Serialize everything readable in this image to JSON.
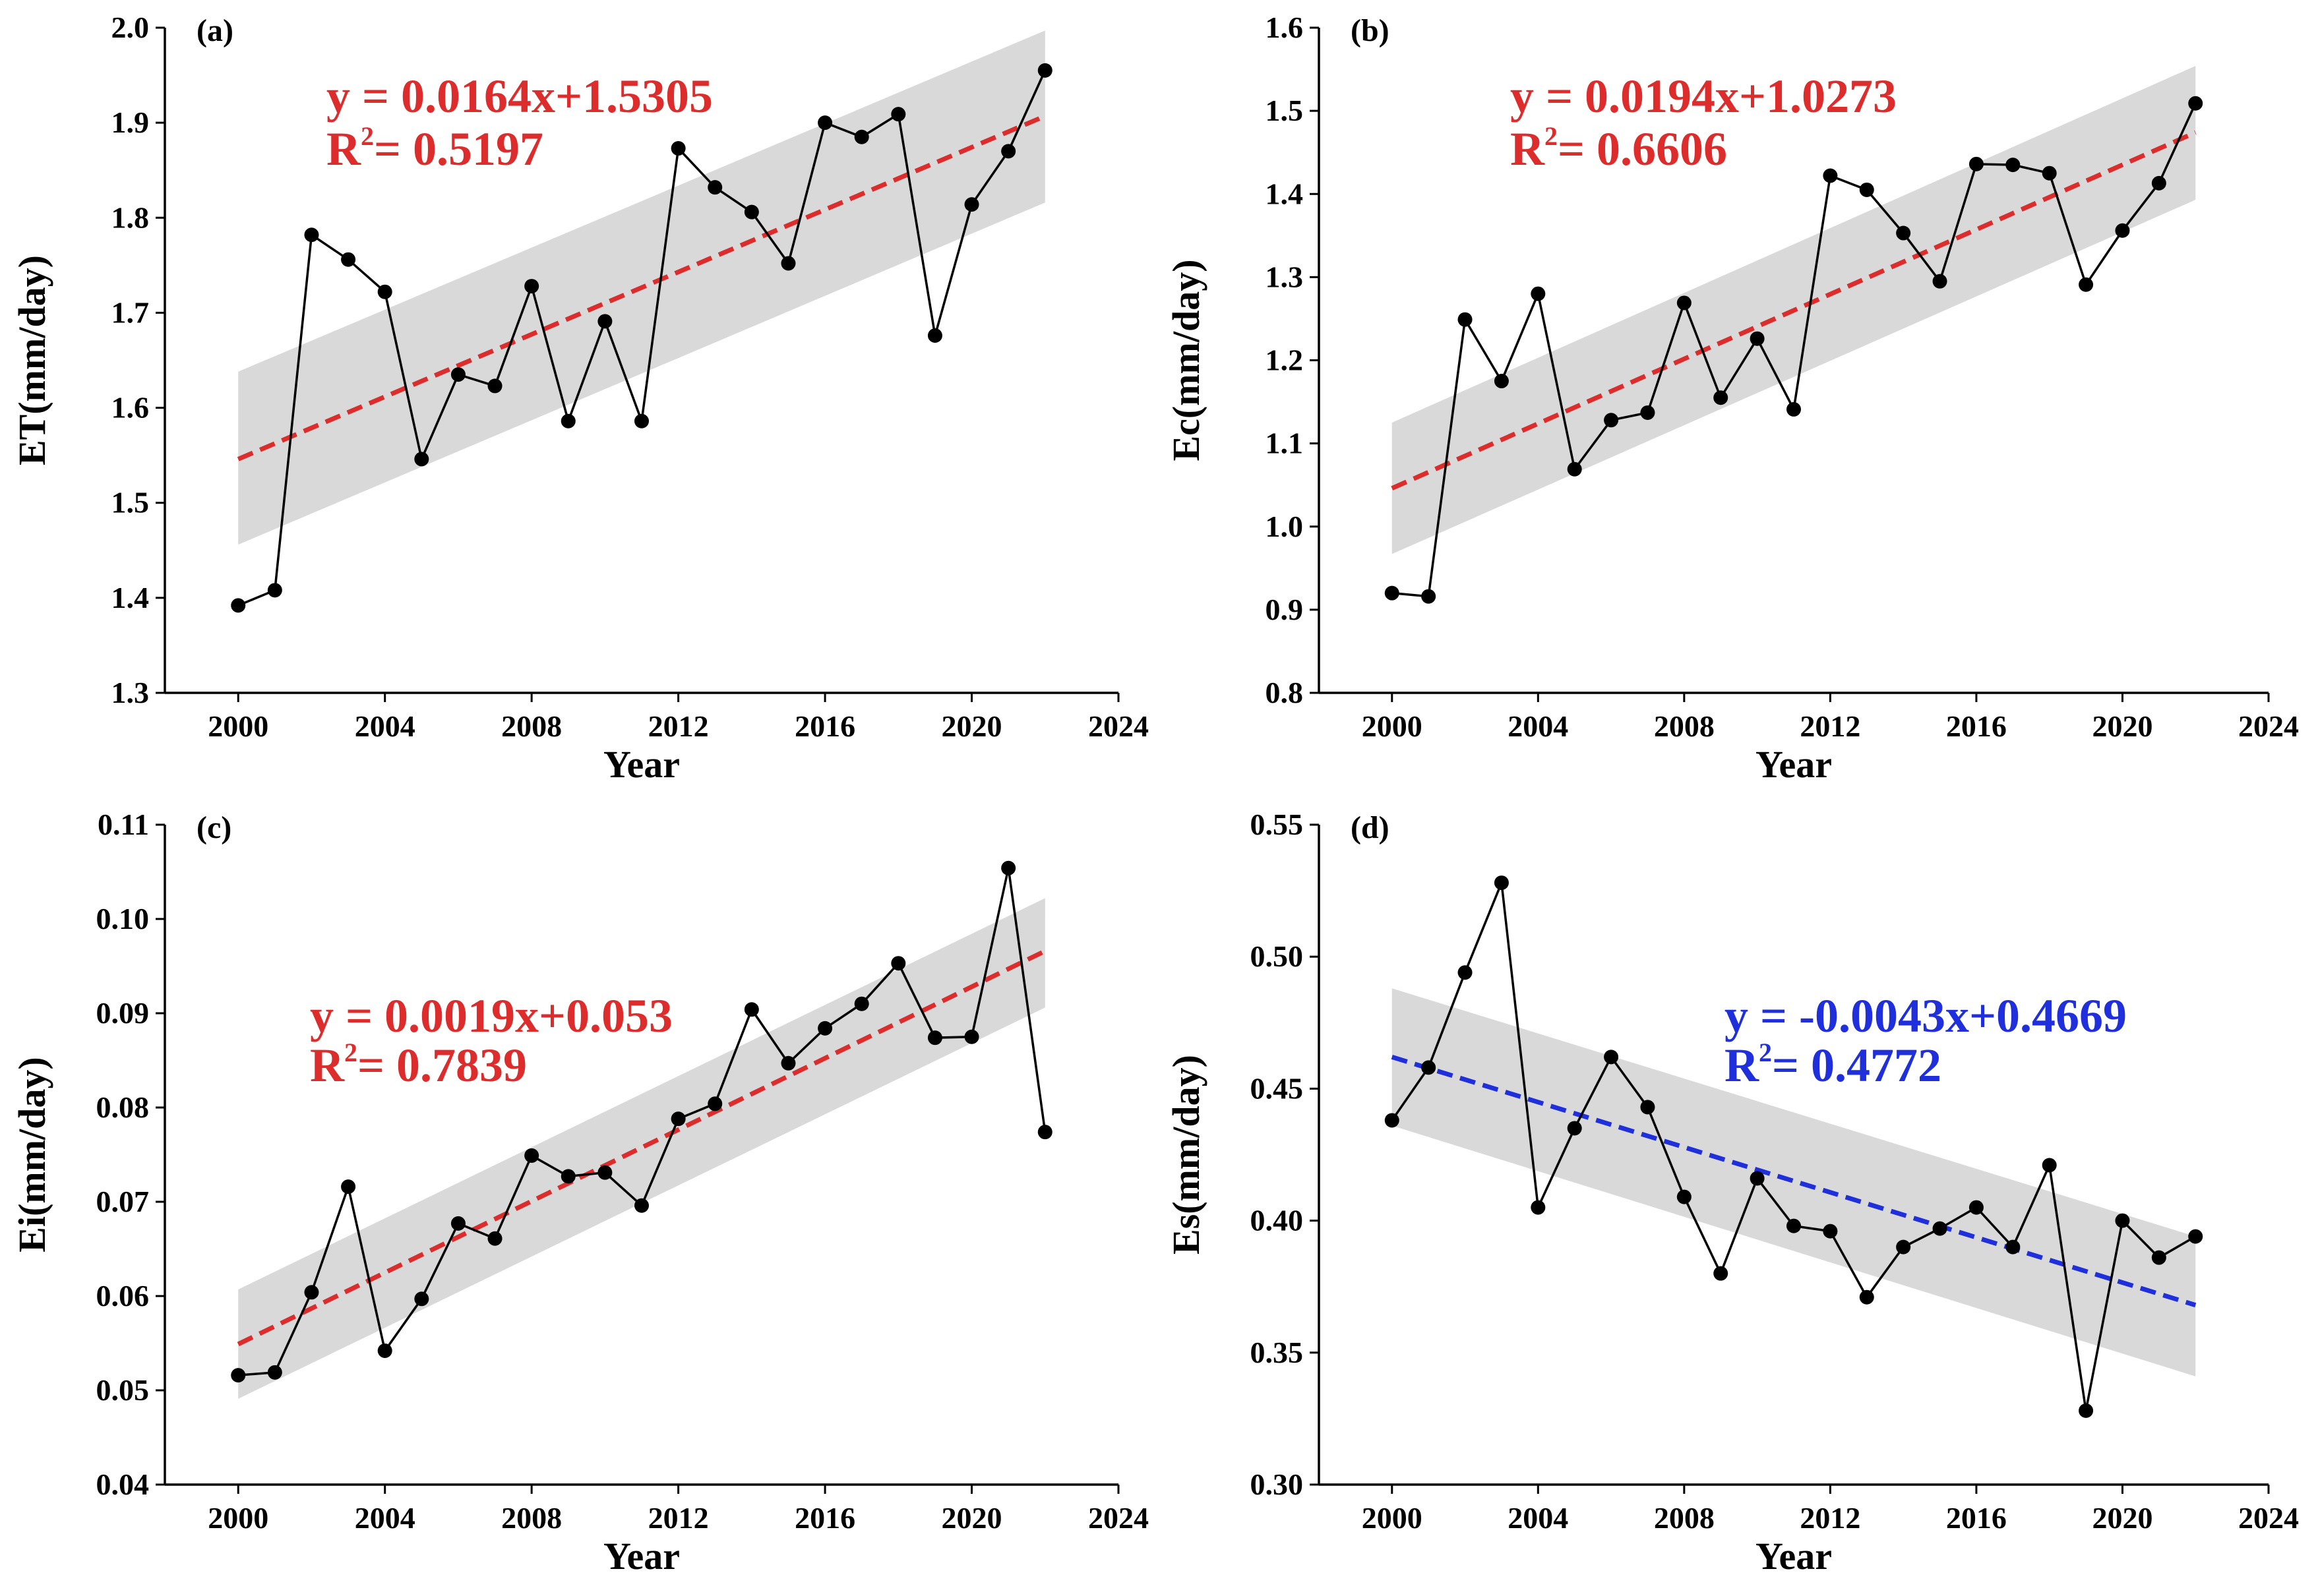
{
  "colors": {
    "red": "#dd2c2c",
    "blue": "#1f2fdc",
    "band": "#d9d9d9",
    "series": "#000000"
  },
  "chart_data": [
    {
      "type": "line",
      "panel_label": "(a)",
      "ylabel": "ET(mm/day)",
      "xlabel": "Year",
      "xlim": [
        1998,
        2024
      ],
      "ylim": [
        1.3,
        2.0
      ],
      "xticks": [
        "2000",
        "2004",
        "2008",
        "2012",
        "2016",
        "2020",
        "2024"
      ],
      "yticks": [
        "1.3",
        "1.4",
        "1.5",
        "1.6",
        "1.7",
        "1.8",
        "1.9",
        "2.0"
      ],
      "x": [
        2000,
        2001,
        2002,
        2003,
        2004,
        2005,
        2006,
        2007,
        2008,
        2009,
        2010,
        2011,
        2012,
        2013,
        2014,
        2015,
        2016,
        2017,
        2018,
        2019,
        2020,
        2021,
        2022
      ],
      "values": [
        1.392,
        1.408,
        1.782,
        1.756,
        1.722,
        1.546,
        1.635,
        1.623,
        1.728,
        1.586,
        1.691,
        1.586,
        1.873,
        1.832,
        1.806,
        1.752,
        1.9,
        1.885,
        1.909,
        1.676,
        1.814,
        1.87,
        1.955
      ],
      "fit": {
        "x": [
          2000,
          2022
        ],
        "y": [
          1.546,
          1.907
        ]
      },
      "band_upper": [
        1.638,
        1.997
      ],
      "band_lower": [
        1.456,
        1.816
      ],
      "trend_color": "red",
      "equation": "y = 0.0164x+1.5305",
      "r2_label": "R",
      "r2_sup": "2",
      "r2_value": "= 0.5197"
    },
    {
      "type": "line",
      "panel_label": "(b)",
      "ylabel": "Ec(mm/day)",
      "xlabel": "Year",
      "xlim": [
        1998,
        2024
      ],
      "ylim": [
        0.8,
        1.6
      ],
      "xticks": [
        "2000",
        "2004",
        "2008",
        "2012",
        "2016",
        "2020",
        "2024"
      ],
      "yticks": [
        "0.8",
        "0.9",
        "1.0",
        "1.1",
        "1.2",
        "1.3",
        "1.4",
        "1.5",
        "1.6"
      ],
      "x": [
        2000,
        2001,
        2002,
        2003,
        2004,
        2005,
        2006,
        2007,
        2008,
        2009,
        2010,
        2011,
        2012,
        2013,
        2014,
        2015,
        2016,
        2017,
        2018,
        2019,
        2020,
        2021,
        2022
      ],
      "values": [
        0.92,
        0.916,
        1.249,
        1.175,
        1.28,
        1.069,
        1.128,
        1.137,
        1.269,
        1.155,
        1.226,
        1.141,
        1.422,
        1.405,
        1.353,
        1.295,
        1.436,
        1.435,
        1.425,
        1.291,
        1.356,
        1.413,
        1.509
      ],
      "fit": {
        "x": [
          2000,
          2022
        ],
        "y": [
          1.046,
          1.474
        ]
      },
      "band_upper": [
        1.125,
        1.554
      ],
      "band_lower": [
        0.967,
        1.393
      ],
      "trend_color": "red",
      "equation": "y = 0.0194x+1.0273",
      "r2_label": "R",
      "r2_sup": "2",
      "r2_value": "= 0.6606"
    },
    {
      "type": "line",
      "panel_label": "(c)",
      "ylabel": "Ei(mm/day)",
      "xlabel": "Year",
      "xlim": [
        1998,
        2024
      ],
      "ylim": [
        0.04,
        0.11
      ],
      "xticks": [
        "2000",
        "2004",
        "2008",
        "2012",
        "2016",
        "2020",
        "2024"
      ],
      "yticks": [
        "0.04",
        "0.05",
        "0.06",
        "0.07",
        "0.08",
        "0.09",
        "0.10",
        "0.11"
      ],
      "x": [
        2000,
        2001,
        2002,
        2003,
        2004,
        2005,
        2006,
        2007,
        2008,
        2009,
        2010,
        2011,
        2012,
        2013,
        2014,
        2015,
        2016,
        2017,
        2018,
        2019,
        2020,
        2021,
        2022
      ],
      "values": [
        0.0516,
        0.0519,
        0.0604,
        0.0716,
        0.0542,
        0.0597,
        0.0677,
        0.0661,
        0.0749,
        0.0727,
        0.0731,
        0.0696,
        0.0788,
        0.0804,
        0.0904,
        0.0847,
        0.0884,
        0.091,
        0.0953,
        0.0874,
        0.0875,
        0.1054,
        0.0774
      ],
      "fit": {
        "x": [
          2000,
          2022
        ],
        "y": [
          0.0549,
          0.0966
        ]
      },
      "band_upper": [
        0.0607,
        0.1022
      ],
      "band_lower": [
        0.0491,
        0.0906
      ],
      "trend_color": "red",
      "equation": "y = 0.0019x+0.053",
      "r2_label": "R",
      "r2_sup": "2",
      "r2_value": "= 0.7839"
    },
    {
      "type": "line",
      "panel_label": "(d)",
      "ylabel": "Es(mm/day)",
      "xlabel": "Year",
      "xlim": [
        1998,
        2024
      ],
      "ylim": [
        0.3,
        0.55
      ],
      "xticks": [
        "2000",
        "2004",
        "2008",
        "2012",
        "2016",
        "2020",
        "2024"
      ],
      "yticks": [
        "0.30",
        "0.35",
        "0.40",
        "0.45",
        "0.50",
        "0.55"
      ],
      "x": [
        2000,
        2001,
        2002,
        2003,
        2004,
        2005,
        2006,
        2007,
        2008,
        2009,
        2010,
        2011,
        2012,
        2013,
        2014,
        2015,
        2016,
        2017,
        2018,
        2019,
        2020,
        2021,
        2022
      ],
      "values": [
        0.438,
        0.458,
        0.494,
        0.528,
        0.405,
        0.435,
        0.462,
        0.443,
        0.409,
        0.38,
        0.416,
        0.398,
        0.396,
        0.371,
        0.39,
        0.397,
        0.405,
        0.39,
        0.421,
        0.328,
        0.4,
        0.386,
        0.394
      ],
      "fit": {
        "x": [
          2000,
          2022
        ],
        "y": [
          0.462,
          0.368
        ]
      },
      "band_upper": [
        0.488,
        0.394
      ],
      "band_lower": [
        0.436,
        0.341
      ],
      "trend_color": "blue",
      "equation": "y = -0.0043x+0.4669",
      "r2_label": "R",
      "r2_sup": "2",
      "r2_value": "= 0.4772"
    }
  ]
}
